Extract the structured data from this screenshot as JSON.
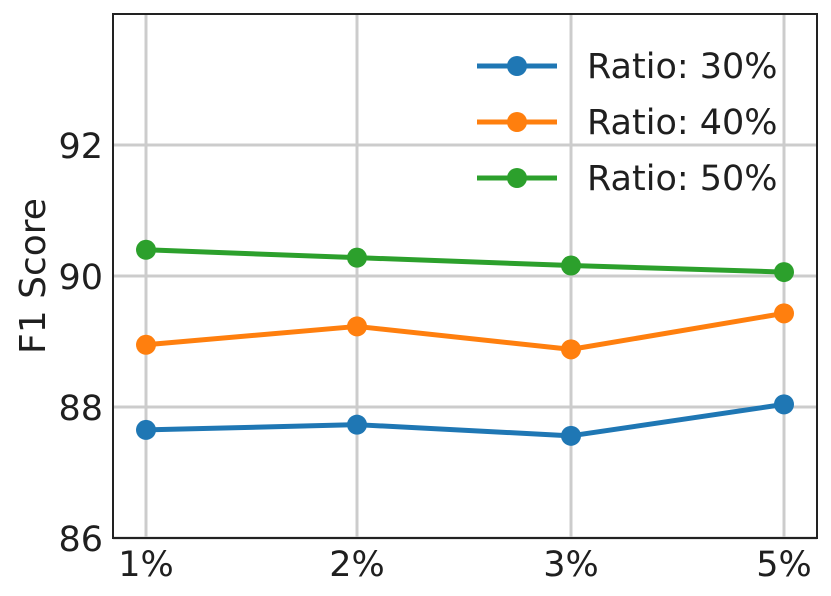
{
  "chart_data": {
    "type": "line",
    "title": "",
    "xlabel": "",
    "ylabel": "F1 Score",
    "categories": [
      "1%",
      "2%",
      "3%",
      "5%"
    ],
    "y_ticks": [
      86,
      88,
      90,
      92
    ],
    "ylim": [
      86,
      94
    ],
    "grid": true,
    "legend_position": "top-right",
    "series": [
      {
        "name": "Ratio: 30%",
        "color": "#1f77b4",
        "values": [
          87.65,
          87.73,
          87.56,
          88.04
        ]
      },
      {
        "name": "Ratio: 40%",
        "color": "#ff7f0e",
        "values": [
          88.95,
          89.23,
          88.88,
          89.43
        ]
      },
      {
        "name": "Ratio: 50%",
        "color": "#2ca02c",
        "values": [
          90.4,
          90.28,
          90.16,
          90.06
        ]
      }
    ]
  }
}
